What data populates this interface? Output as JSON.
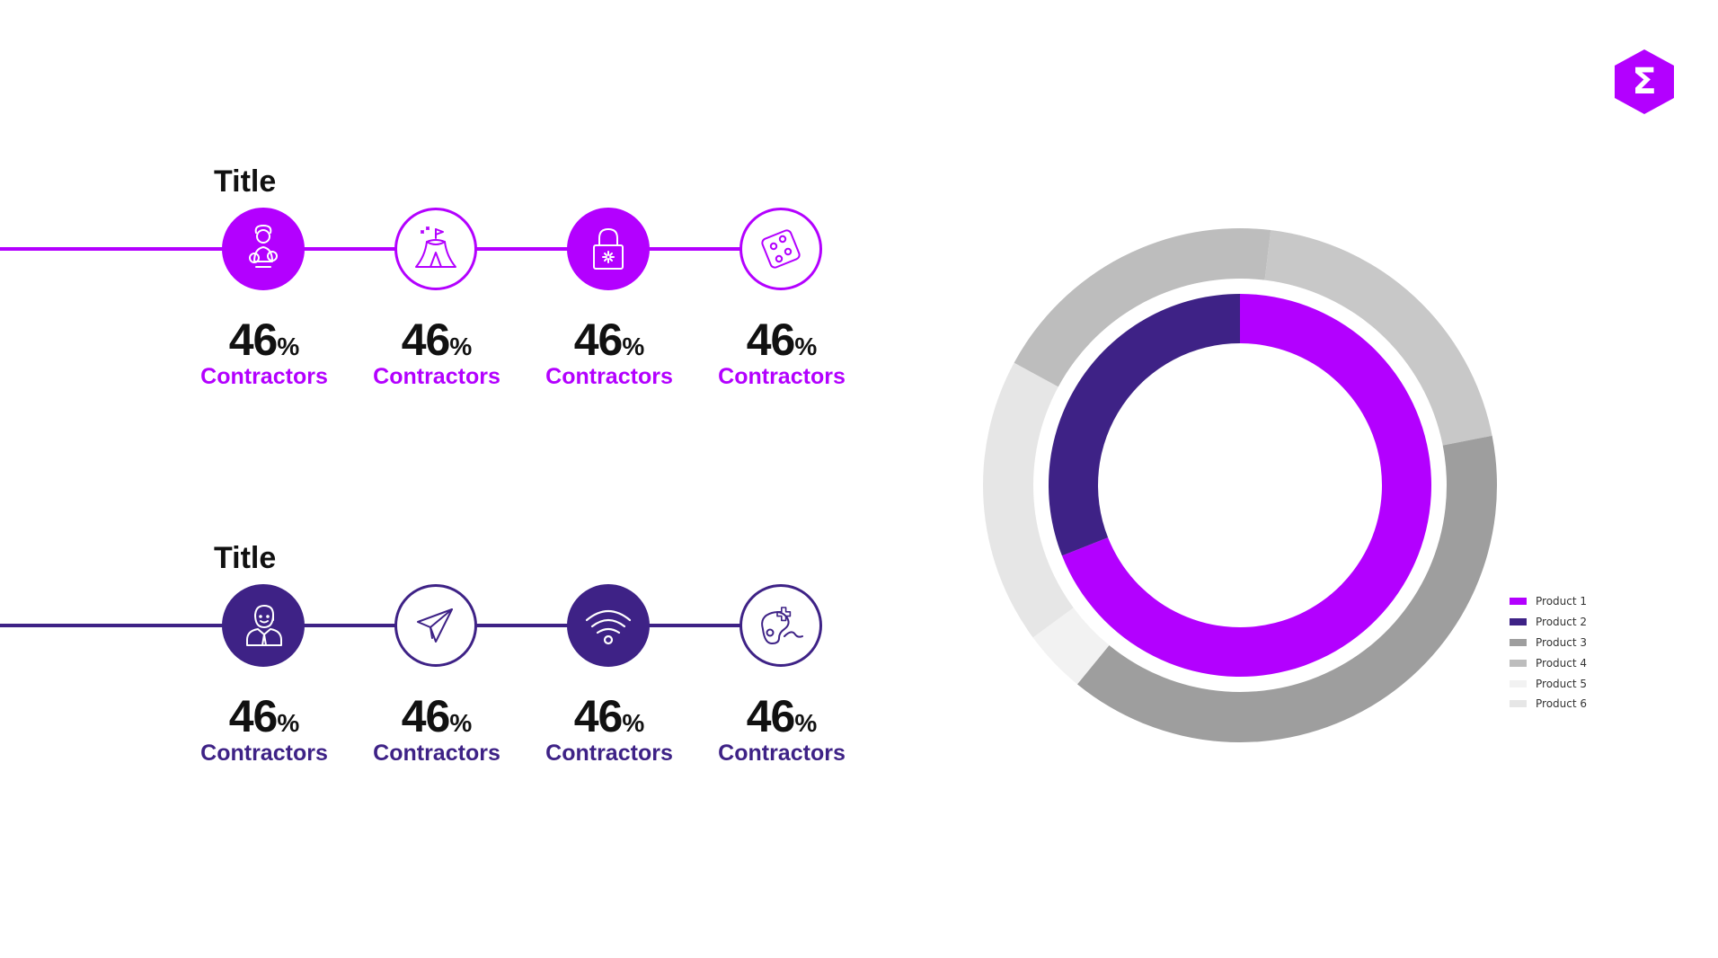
{
  "colors": {
    "purple": "#b300ff",
    "indigo": "#3e2286",
    "text": "#111111"
  },
  "logo": {
    "glyph": "Σ",
    "icon": "sigma-hexagon-icon"
  },
  "sections": [
    {
      "title": "Title",
      "accent": "#b300ff",
      "items": [
        {
          "icon": "juggler-icon",
          "filled": true,
          "value": "46",
          "unit": "%",
          "label": "Contractors"
        },
        {
          "icon": "circus-tent-icon",
          "filled": false,
          "value": "46",
          "unit": "%",
          "label": "Contractors"
        },
        {
          "icon": "padlock-icon",
          "filled": true,
          "value": "46",
          "unit": "%",
          "label": "Contractors"
        },
        {
          "icon": "dice-icon",
          "filled": false,
          "value": "46",
          "unit": "%",
          "label": "Contractors"
        }
      ]
    },
    {
      "title": "Title",
      "accent": "#3e2286",
      "items": [
        {
          "icon": "person-icon",
          "filled": true,
          "value": "46",
          "unit": "%",
          "label": "Contractors"
        },
        {
          "icon": "paper-plane-icon",
          "filled": false,
          "value": "46",
          "unit": "%",
          "label": "Contractors"
        },
        {
          "icon": "wifi-icon",
          "filled": true,
          "value": "46",
          "unit": "%",
          "label": "Contractors"
        },
        {
          "icon": "gamepad-icon",
          "filled": false,
          "value": "46",
          "unit": "%",
          "label": "Contractors"
        }
      ]
    }
  ],
  "chart_data": {
    "type": "pie",
    "variant": "double-donut",
    "title": "",
    "legend_position": "right",
    "legend": [
      {
        "name": "Product 1",
        "color": "#b300ff"
      },
      {
        "name": "Product 2",
        "color": "#3e2286"
      },
      {
        "name": "Product 3",
        "color": "#9e9e9e"
      },
      {
        "name": "Product 4",
        "color": "#bdbdbd"
      },
      {
        "name": "Product 5",
        "color": "#f2f2f2"
      },
      {
        "name": "Product 6",
        "color": "#e6e6e6"
      }
    ],
    "rings": [
      {
        "ring": "inner",
        "slices": [
          {
            "name": "Product 1",
            "value": 69,
            "color": "#b300ff"
          },
          {
            "name": "Product 2",
            "value": 31,
            "color": "#3e2286"
          }
        ]
      },
      {
        "ring": "outer",
        "slices": [
          {
            "name": "Product 4",
            "value": 20,
            "color": "#c8c8c8"
          },
          {
            "name": "Product 3",
            "value": 39,
            "color": "#9e9e9e"
          },
          {
            "name": "Product 5",
            "value": 4,
            "color": "#f2f2f2"
          },
          {
            "name": "Product 6",
            "value": 18,
            "color": "#e6e6e6"
          },
          {
            "name": "Product 4",
            "value": 19,
            "color": "#bdbdbd"
          }
        ]
      }
    ]
  }
}
